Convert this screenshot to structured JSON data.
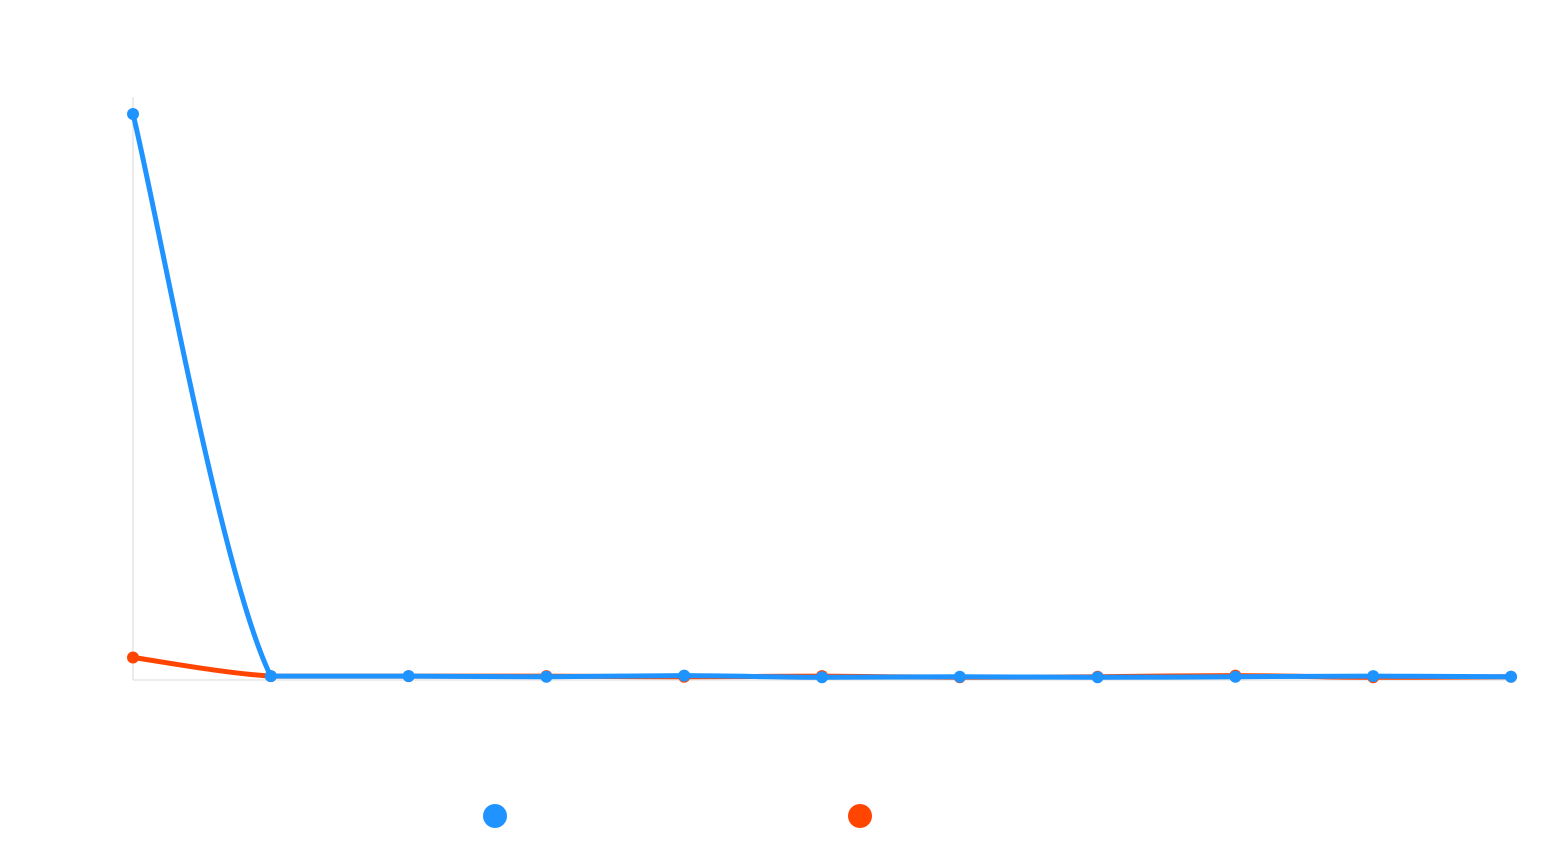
{
  "chart_data": {
    "type": "line",
    "title": "",
    "xlabel": "",
    "ylabel": "",
    "categories": [
      "",
      "",
      "",
      "",
      "",
      "",
      "",
      "",
      "",
      "",
      ""
    ],
    "ylim": [
      0,
      100
    ],
    "grid": false,
    "legend_position": "bottom",
    "series": [
      {
        "color": "#1f93ff",
        "values": [
          100,
          0.5,
          0.5,
          0.4,
          0.6,
          0.3,
          0.4,
          0.3,
          0.4,
          0.5,
          0.4
        ]
      },
      {
        "color": "#ff4500",
        "values": [
          3.8,
          0.5,
          0.5,
          0.5,
          0.4,
          0.5,
          0.3,
          0.4,
          0.6,
          0.3,
          0.4
        ]
      }
    ]
  }
}
